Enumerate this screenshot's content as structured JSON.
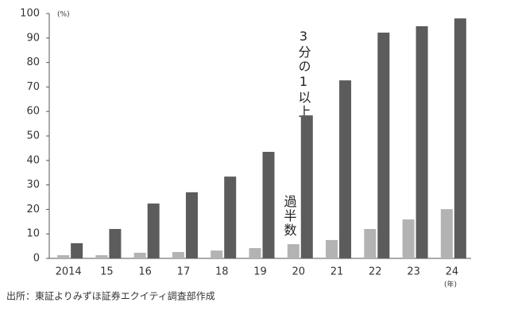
{
  "chart_data": {
    "type": "bar",
    "y_unit": "(%)",
    "x_unit": "(年)",
    "annotations": [
      "3分の1以上",
      "過半数"
    ],
    "source": "出所：東証よりみずほ証券エクイティ調査部作成",
    "categories": [
      "2014",
      "15",
      "16",
      "17",
      "18",
      "19",
      "20",
      "21",
      "22",
      "23",
      "24"
    ],
    "series": [
      {
        "color": "#b3b3b3",
        "values": [
          1.3,
          1.3,
          2.3,
          2.6,
          3.2,
          4.2,
          5.8,
          7.5,
          12,
          15.9,
          20.1
        ]
      },
      {
        "color": "#5c5c5c",
        "values": [
          6.2,
          12,
          22.4,
          27,
          33.4,
          43.5,
          58.4,
          72.7,
          92.2,
          94.8,
          98
        ]
      }
    ],
    "ylim": [
      0,
      100
    ],
    "yticks": [
      0,
      10,
      20,
      30,
      40,
      50,
      60,
      70,
      80,
      90,
      100
    ],
    "grid": false
  }
}
